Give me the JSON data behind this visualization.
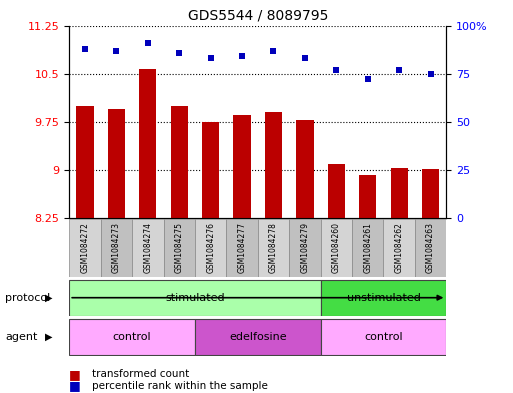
{
  "title": "GDS5544 / 8089795",
  "samples": [
    "GSM1084272",
    "GSM1084273",
    "GSM1084274",
    "GSM1084275",
    "GSM1084276",
    "GSM1084277",
    "GSM1084278",
    "GSM1084279",
    "GSM1084260",
    "GSM1084261",
    "GSM1084262",
    "GSM1084263"
  ],
  "transformed_count": [
    10.0,
    9.95,
    10.57,
    10.0,
    9.75,
    9.85,
    9.9,
    9.78,
    9.1,
    8.92,
    9.03,
    9.02
  ],
  "percentile_rank": [
    88,
    87,
    91,
    86,
    83,
    84,
    87,
    83,
    77,
    72,
    77,
    75
  ],
  "bar_color": "#bb0000",
  "dot_color": "#0000bb",
  "ylim_left": [
    8.25,
    11.25
  ],
  "ylim_right": [
    0,
    100
  ],
  "yticks_left": [
    8.25,
    9.0,
    9.75,
    10.5,
    11.25
  ],
  "yticks_left_labels": [
    "8.25",
    "9",
    "9.75",
    "10.5",
    "11.25"
  ],
  "yticks_right": [
    0,
    25,
    50,
    75,
    100
  ],
  "yticks_right_labels": [
    "0",
    "25",
    "50",
    "75",
    "100%"
  ],
  "protocol_color_stimulated": "#aaffaa",
  "protocol_color_unstimulated": "#44dd44",
  "agent_color_control": "#ffaaff",
  "agent_color_edelfosine": "#cc55cc",
  "background_color": "#ffffff",
  "bar_width": 0.55,
  "sample_bg_even": "#d4d4d4",
  "sample_bg_odd": "#c0c0c0"
}
